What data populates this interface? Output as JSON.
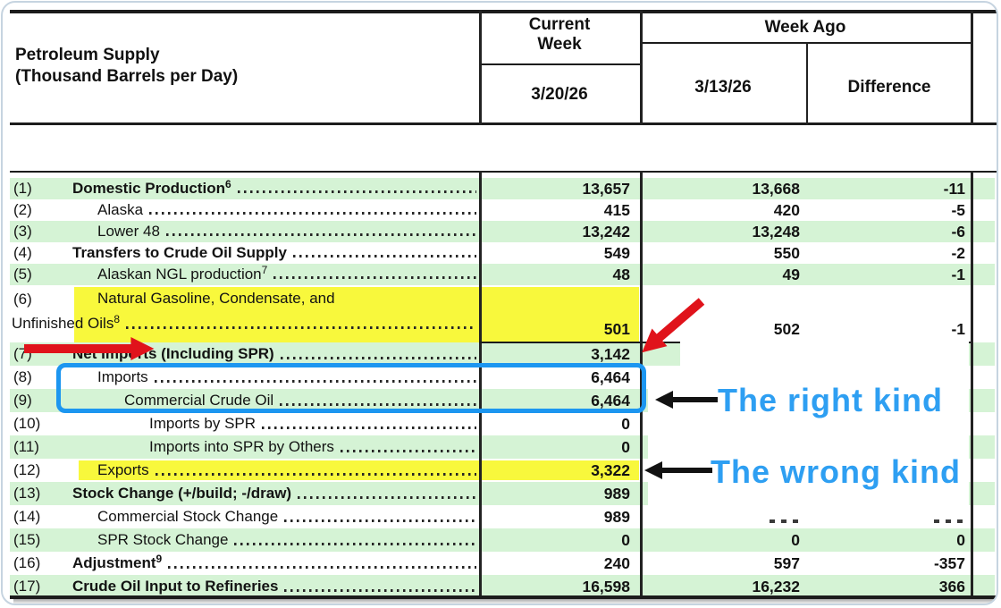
{
  "header": {
    "title_line1": "Petroleum Supply",
    "title_line2": "(Thousand Barrels per Day)",
    "col_current_week": "Current Week",
    "col_current_date": "3/20/26",
    "col_week_ago": "Week Ago",
    "col_week_ago_date": "3/13/26",
    "col_difference": "Difference"
  },
  "rows": [
    {
      "num": "(1)",
      "label": "Domestic Production",
      "sup": "6",
      "indent": 1,
      "bold": true,
      "stripe": true,
      "highlight": false,
      "current": "13,657",
      "week_ago": "13,668",
      "difference": "-11"
    },
    {
      "num": "(2)",
      "label": "Alaska",
      "indent": 2,
      "bold": false,
      "stripe": false,
      "highlight": false,
      "current": "415",
      "week_ago": "420",
      "difference": "-5"
    },
    {
      "num": "(3)",
      "label": "Lower 48",
      "indent": 2,
      "bold": false,
      "stripe": true,
      "highlight": false,
      "current": "13,242",
      "week_ago": "13,248",
      "difference": "-6"
    },
    {
      "num": "(4)",
      "label": "Transfers to Crude Oil Supply",
      "indent": 1,
      "bold": true,
      "stripe": false,
      "highlight": false,
      "current": "549",
      "week_ago": "550",
      "difference": "-2"
    },
    {
      "num": "(5)",
      "label": "Alaskan NGL production",
      "sup": "7",
      "indent": 2,
      "bold": false,
      "stripe": true,
      "highlight": false,
      "current": "48",
      "week_ago": "49",
      "difference": "-1"
    },
    {
      "num": "(6)",
      "label": "Natural Gasoline, Condensate, and",
      "label2": "Unfinished Oils",
      "sup2": "8",
      "indent": 2,
      "bold": false,
      "stripe": false,
      "highlight": true,
      "current": "501",
      "week_ago": "502",
      "difference": "-1"
    },
    {
      "num": "(7)",
      "label": "Net Imports (Including SPR)",
      "indent": 1,
      "bold": true,
      "stripe": true,
      "highlight": false,
      "current": "3,142",
      "week_ago": "",
      "difference": ""
    },
    {
      "num": "(8)",
      "label": "Imports",
      "indent": 2,
      "bold": false,
      "stripe": false,
      "highlight": false,
      "current": "6,464",
      "week_ago": "",
      "difference": ""
    },
    {
      "num": "(9)",
      "label": "Commercial Crude Oil",
      "indent": 3,
      "bold": false,
      "stripe": true,
      "highlight": false,
      "current": "6,464",
      "week_ago": "",
      "difference": ""
    },
    {
      "num": "(10)",
      "label": "Imports by SPR",
      "indent": 4,
      "bold": false,
      "stripe": false,
      "highlight": false,
      "current": "0",
      "week_ago": "",
      "difference": ""
    },
    {
      "num": "(11)",
      "label": "Imports into SPR by Others",
      "indent": 4,
      "bold": false,
      "stripe": true,
      "highlight": false,
      "current": "0",
      "week_ago": "",
      "difference": ""
    },
    {
      "num": "(12)",
      "label": "Exports",
      "indent": 2,
      "bold": false,
      "stripe": false,
      "highlight": true,
      "current": "3,322",
      "week_ago": "",
      "difference": ""
    },
    {
      "num": "(13)",
      "label": "Stock Change (+/build; -/draw)",
      "indent": 1,
      "bold": true,
      "stripe": true,
      "highlight": false,
      "current": "989",
      "week_ago": "",
      "difference": ""
    },
    {
      "num": "(14)",
      "label": "Commercial Stock Change",
      "indent": 2,
      "bold": false,
      "stripe": false,
      "highlight": false,
      "current": "989",
      "week_ago": "",
      "difference": ""
    },
    {
      "num": "(15)",
      "label": "SPR Stock Change",
      "indent": 2,
      "bold": false,
      "stripe": true,
      "highlight": false,
      "current": "0",
      "week_ago": "0",
      "difference": "0"
    },
    {
      "num": "(16)",
      "label": "Adjustment",
      "sup": "9",
      "indent": 1,
      "bold": true,
      "stripe": false,
      "highlight": false,
      "current": "240",
      "week_ago": "597",
      "difference": "-357"
    },
    {
      "num": "(17)",
      "label": "Crude Oil Input to Refineries",
      "indent": 1,
      "bold": true,
      "stripe": true,
      "highlight": false,
      "current": "16,598",
      "week_ago": "16,232",
      "difference": "366"
    }
  ],
  "annotations": {
    "right_label": "The right kind",
    "wrong_label": "The wrong kind",
    "stripe_green": "#D5F3D5",
    "highlight_yellow": "#F8F83C",
    "box_blue": "#1C96F0",
    "text_blue": "#2E9FF2",
    "arrow_red": "#E0131B",
    "arrow_black": "#121212"
  }
}
